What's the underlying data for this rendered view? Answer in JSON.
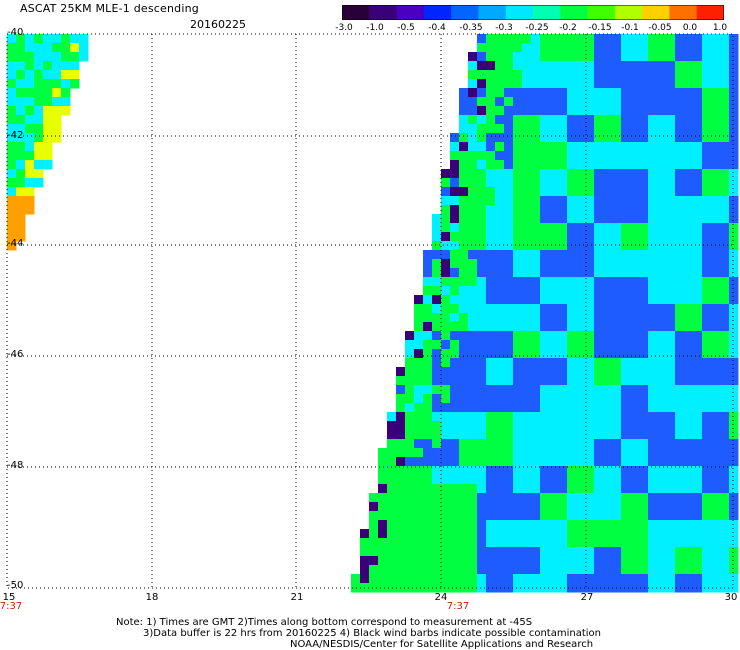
{
  "header": {
    "title": "ASCAT 25KM MLE-1 descending",
    "date": "20160225"
  },
  "colorbar": {
    "ticks": [
      "-3.0",
      "-1.0",
      "-0.5",
      "-0.4",
      "-0.35",
      "-0.3",
      "-0.25",
      "-0.2",
      "-0.15",
      "-0.1",
      "-0.05",
      "0.0",
      "1.0"
    ],
    "colors": [
      "#2a0038",
      "#3a007a",
      "#4a00c0",
      "#0026ff",
      "#0066ff",
      "#00a8ff",
      "#00e8ff",
      "#00ffb0",
      "#00ff40",
      "#40ff00",
      "#b0ff00",
      "#ffd000",
      "#ff7000",
      "#ff2000"
    ]
  },
  "axes": {
    "lat_labels": [
      "-40",
      "-42",
      "-44",
      "-46",
      "-48",
      "-50"
    ],
    "lon_labels": [
      "15",
      "18",
      "21",
      "24",
      "27",
      "30"
    ],
    "time_labels": [
      "7:37",
      "7:37"
    ]
  },
  "notes": {
    "line1": "Note: 1) Times are GMT 2)Times along bottom correspond to measurement at -45S",
    "line2": "3)Data buffer is 22 hrs from 20160225 4) Black wind barbs indicate possible contamination",
    "line3": "NOAA/NESDIS/Center for Satellite Applications and Research"
  },
  "palette": {
    "dark_purple": "#3a007a",
    "blue": "#1e5cff",
    "cyan": "#00f0ff",
    "green": "#00ff40",
    "yellow": "#e8ff00",
    "orange": "#ffa000"
  }
}
